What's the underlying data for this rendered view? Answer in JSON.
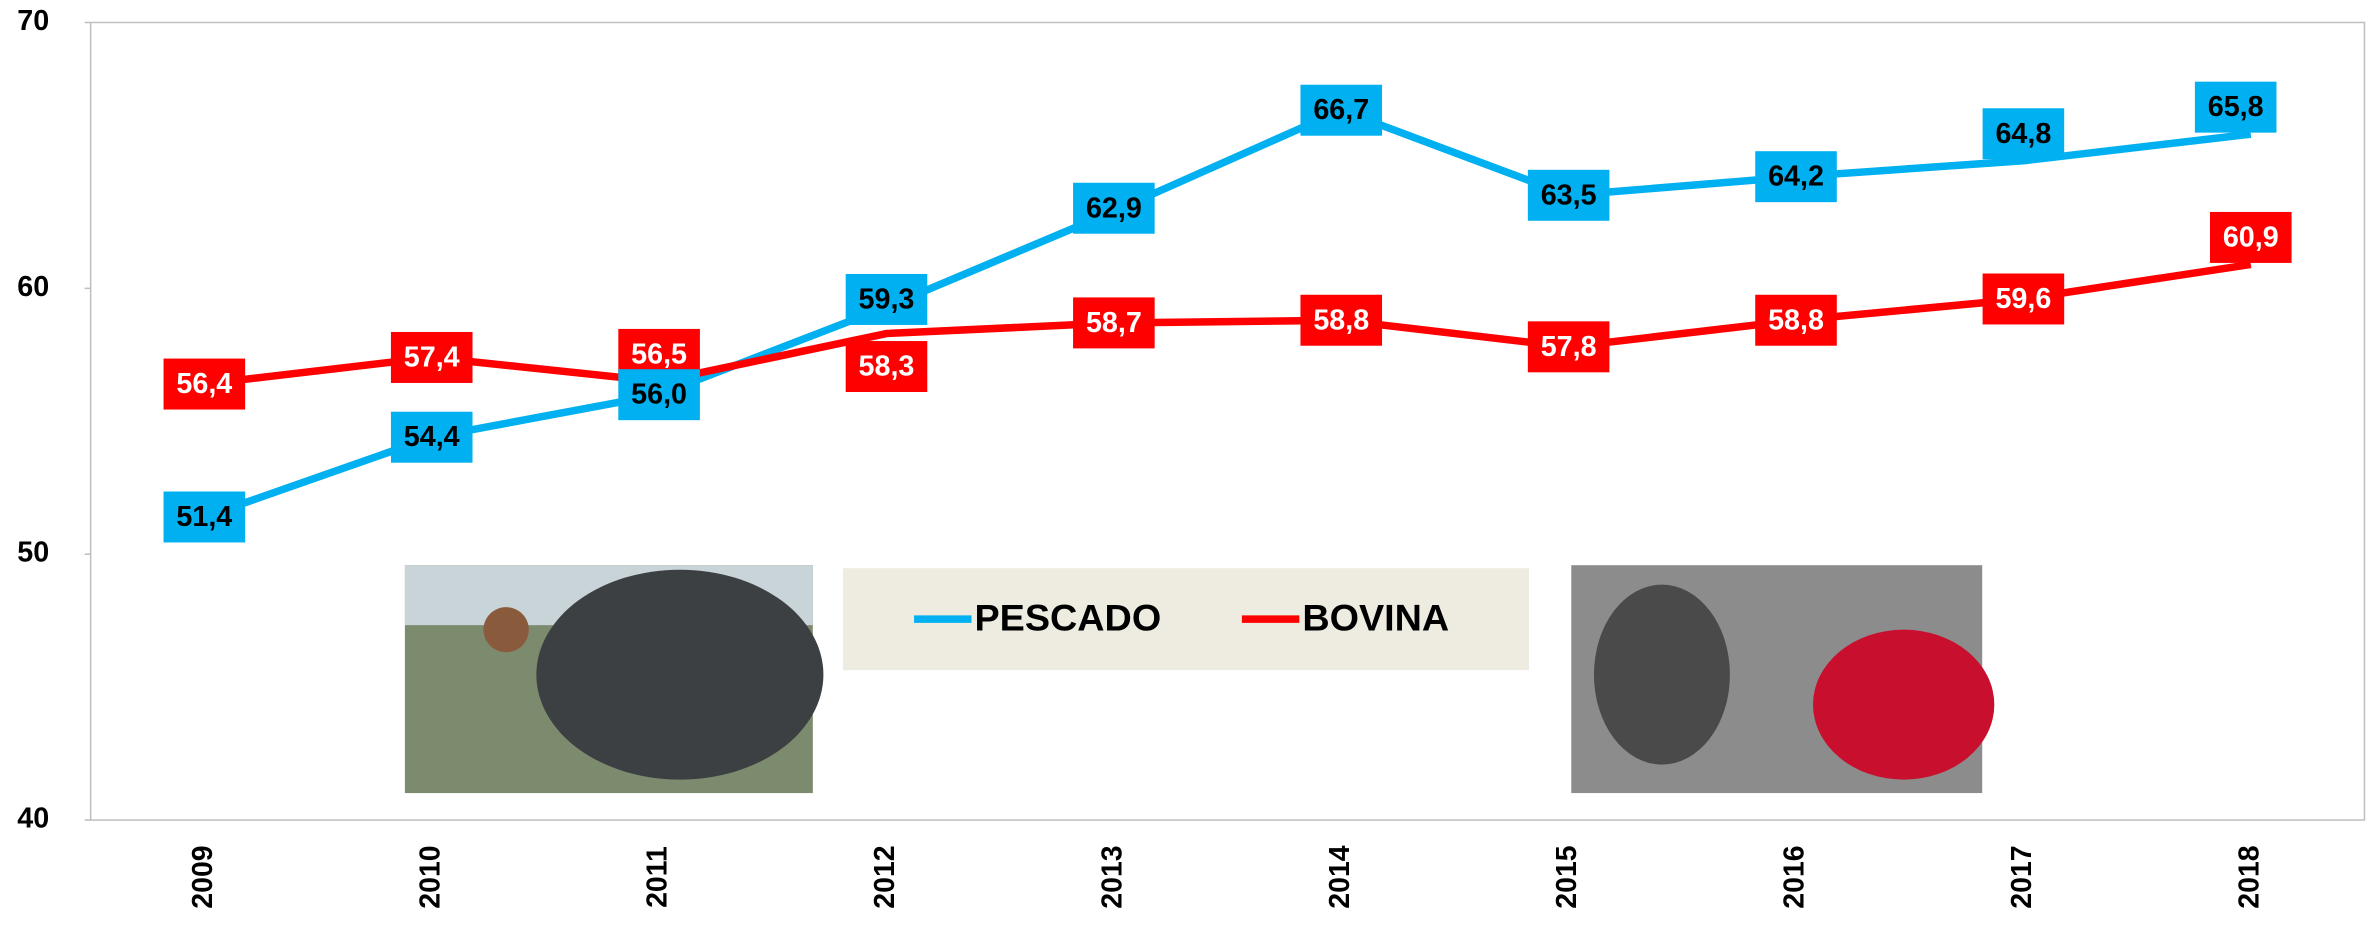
{
  "chart_data": {
    "type": "line",
    "categories": [
      "2009",
      "2010",
      "2011",
      "2012",
      "2013",
      "2014",
      "2015",
      "2016",
      "2017",
      "2018"
    ],
    "series": [
      {
        "name": "PESCADO",
        "color": "#00b0f0",
        "values": [
          51.4,
          54.4,
          56.0,
          59.3,
          62.9,
          66.7,
          63.5,
          64.2,
          64.8,
          65.8
        ],
        "value_labels": [
          "51,4",
          "54,4",
          "56,0",
          "59,3",
          "62,9",
          "66,7",
          "63,5",
          "64,2",
          "64,8",
          "65,8"
        ]
      },
      {
        "name": "BOVINA",
        "color": "#ff0000",
        "values": [
          56.4,
          57.4,
          56.5,
          58.3,
          58.7,
          58.8,
          57.8,
          58.8,
          59.6,
          60.9
        ],
        "value_labels": [
          "56,4",
          "57,4",
          "56,5",
          "58,3",
          "58,7",
          "58,8",
          "57,8",
          "58,8",
          "59,6",
          "60,9"
        ]
      }
    ],
    "ylim": [
      40,
      70
    ],
    "yticks": [
      40,
      50,
      60,
      70
    ]
  }
}
